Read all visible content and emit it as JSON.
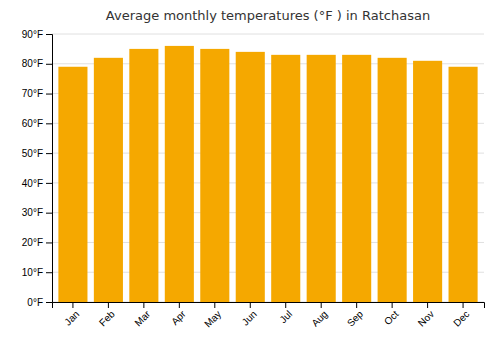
{
  "chart_data": {
    "type": "bar",
    "title": "Average monthly temperatures (°F ) in Ratchasan",
    "categories": [
      "Jan",
      "Feb",
      "Mar",
      "Apr",
      "May",
      "Jun",
      "Jul",
      "Aug",
      "Sep",
      "Oct",
      "Nov",
      "Dec"
    ],
    "values": [
      79,
      82,
      85,
      86,
      85,
      84,
      83,
      83,
      83,
      82,
      81,
      79
    ],
    "color": "#F5A800",
    "ylim": [
      0,
      90
    ],
    "yticks": [
      {
        "value": 0,
        "label": "0°F"
      },
      {
        "value": 10,
        "label": "10°F"
      },
      {
        "value": 20,
        "label": "20°F"
      },
      {
        "value": 30,
        "label": "30°F"
      },
      {
        "value": 40,
        "label": "40°F"
      },
      {
        "value": 50,
        "label": "50°F"
      },
      {
        "value": 60,
        "label": "60°F"
      },
      {
        "value": 70,
        "label": "70°F"
      },
      {
        "value": 80,
        "label": "80°F"
      },
      {
        "value": 90,
        "label": "90°F"
      }
    ],
    "grid": true
  }
}
